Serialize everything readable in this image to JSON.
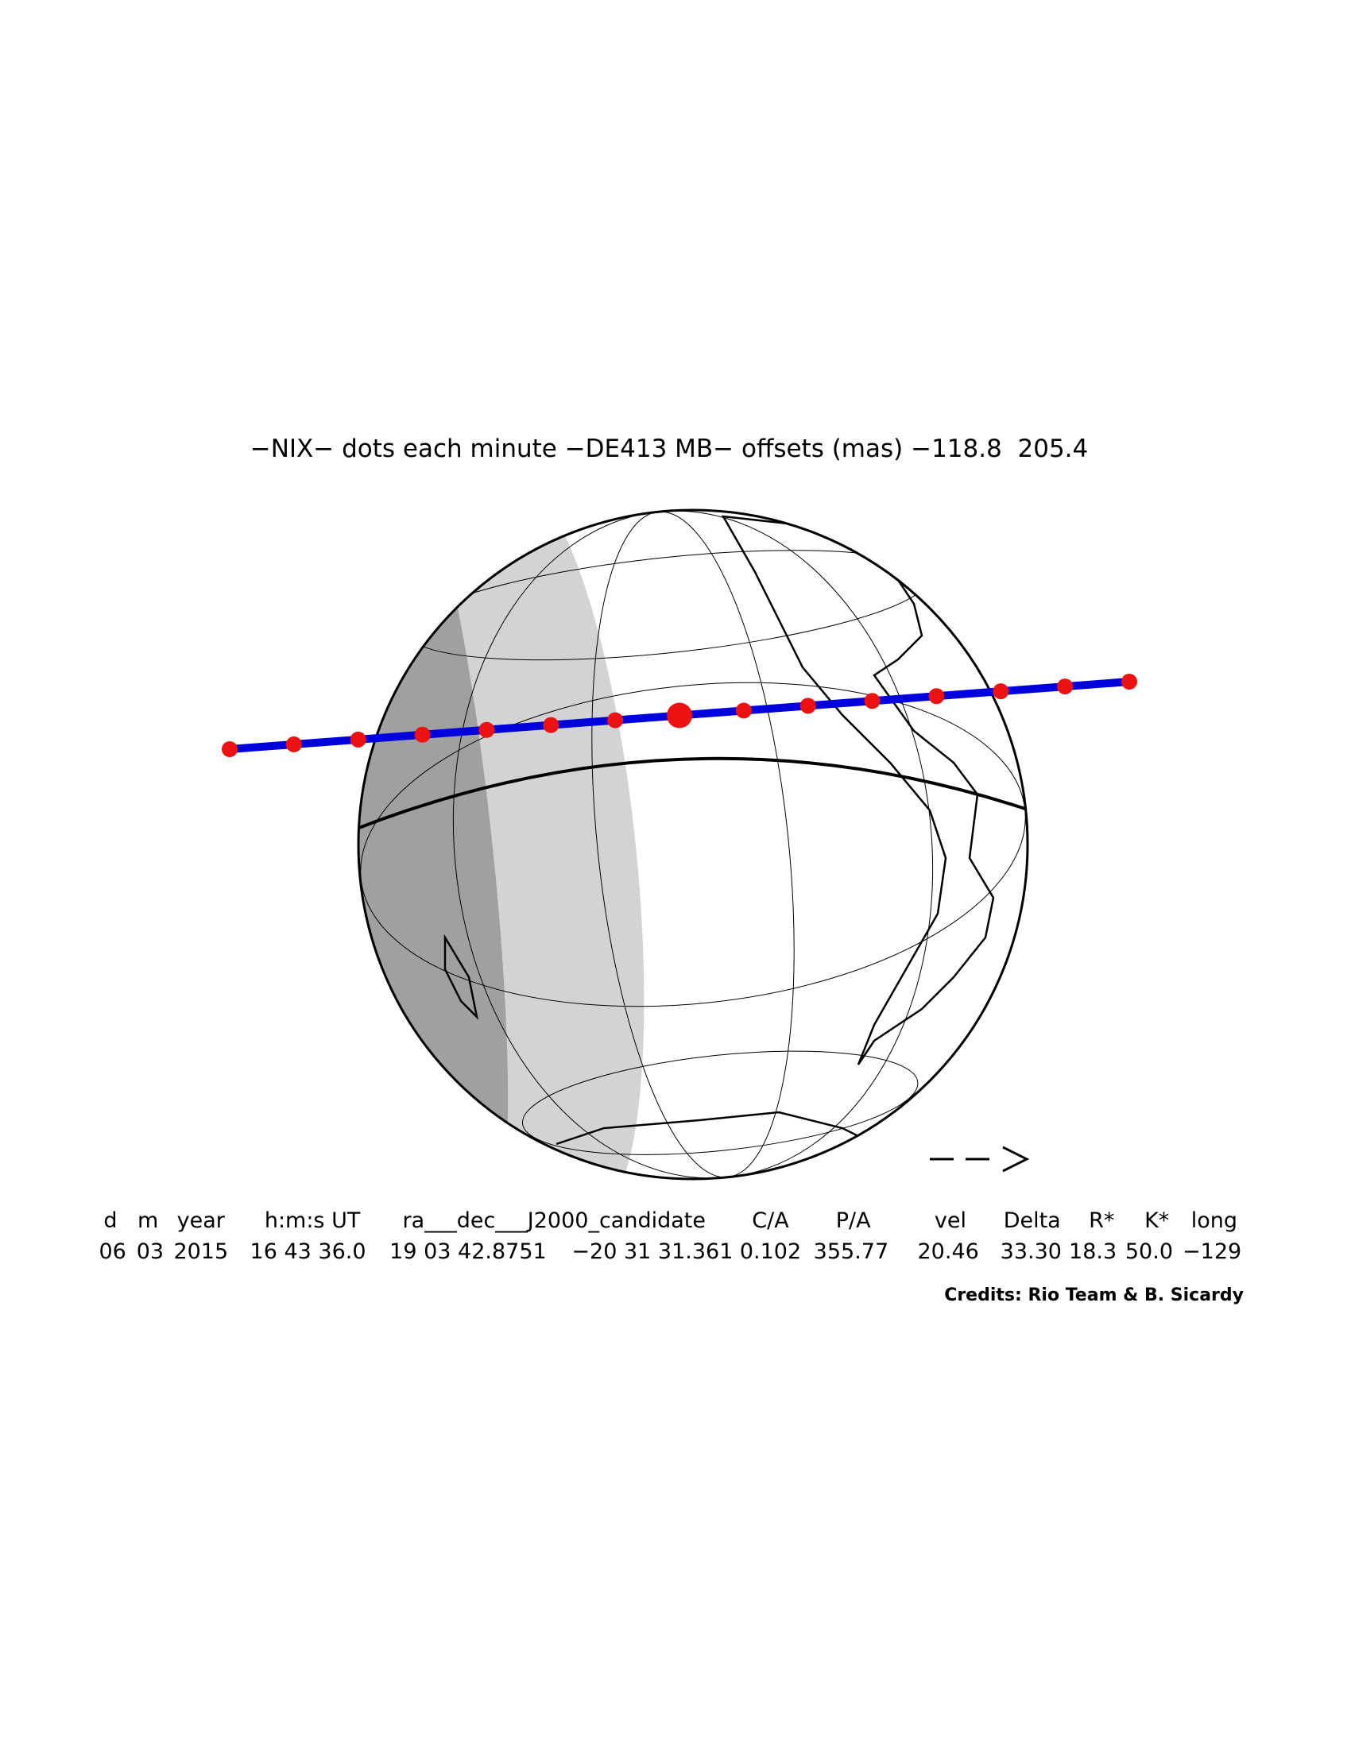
{
  "title": "−NIX− dots each minute −DE413 MB− offsets (mas) −118.8  205.4",
  "table": {
    "headers": [
      "d",
      "m",
      "year",
      "h:m:s UT",
      "ra___dec___J2000_candidate",
      "C/A",
      "P/A",
      "vel",
      "Delta",
      "R*",
      "K*",
      "long"
    ],
    "values": [
      "06",
      "03",
      "2015",
      "16 43 36.0",
      "19 03 42.8751",
      "−20 31 31.361",
      "0.102",
      "355.77",
      "20.46",
      "33.30",
      "18.3",
      "50.0",
      "−129"
    ]
  },
  "credits": "Credits: Rio Team & B. Sicardy"
}
